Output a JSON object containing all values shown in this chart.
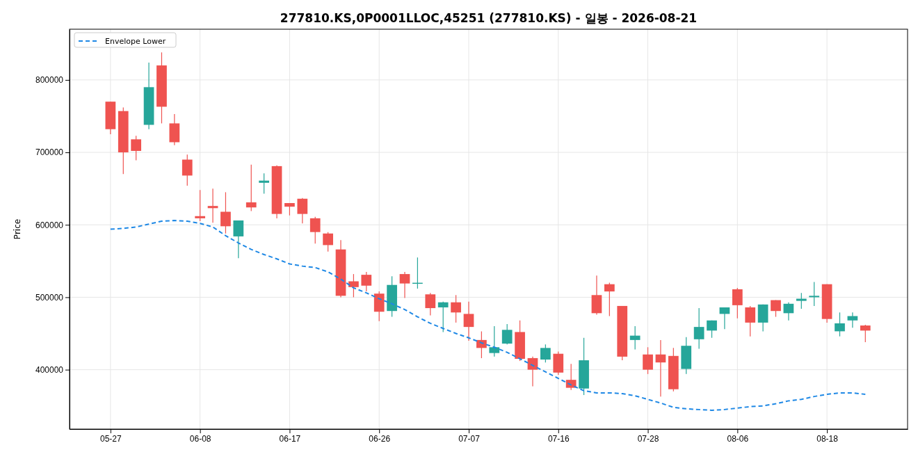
{
  "chart_data": {
    "type": "candlestick",
    "title": "277810.KS,0P0001LLOC,45251 (277810.KS) - 일봉 - 2026-08-21",
    "ylabel": "Price",
    "categories": [
      "05-27",
      null,
      null,
      null,
      null,
      null,
      null,
      "06-08",
      null,
      null,
      null,
      null,
      null,
      null,
      "06-17",
      null,
      null,
      null,
      null,
      null,
      null,
      "06-26",
      null,
      null,
      null,
      null,
      null,
      null,
      "07-07",
      null,
      null,
      null,
      null,
      null,
      null,
      "07-16",
      null,
      null,
      null,
      null,
      null,
      null,
      "07-28",
      null,
      null,
      null,
      null,
      null,
      null,
      "08-06",
      null,
      null,
      null,
      null,
      null,
      null,
      "08-18",
      null,
      null,
      null
    ],
    "ohlc": [
      [
        770000,
        770000,
        725000,
        732000
      ],
      [
        757000,
        762000,
        670000,
        700000
      ],
      [
        718000,
        723000,
        689000,
        702000
      ],
      [
        738000,
        824000,
        732000,
        790000
      ],
      [
        820000,
        838000,
        740000,
        763000
      ],
      [
        740000,
        753000,
        710000,
        714000
      ],
      [
        690000,
        697000,
        654000,
        668000
      ],
      [
        612000,
        648000,
        605000,
        609000
      ],
      [
        626000,
        650000,
        603000,
        623000
      ],
      [
        618000,
        645000,
        588000,
        598000
      ],
      [
        584000,
        606000,
        554000,
        606000
      ],
      [
        631000,
        683000,
        619000,
        624000
      ],
      [
        658000,
        671000,
        643000,
        661000
      ],
      [
        681000,
        682000,
        609000,
        615000
      ],
      [
        630000,
        630000,
        613000,
        625000
      ],
      [
        636000,
        637000,
        602000,
        615000
      ],
      [
        609000,
        611000,
        574000,
        590000
      ],
      [
        588000,
        590000,
        563000,
        572000
      ],
      [
        566000,
        579000,
        500000,
        502000
      ],
      [
        522000,
        532000,
        500000,
        514000
      ],
      [
        531000,
        535000,
        508000,
        516000
      ],
      [
        505000,
        508000,
        467000,
        480000
      ],
      [
        481000,
        529000,
        473000,
        517000
      ],
      [
        532000,
        535000,
        499000,
        519000
      ],
      [
        519000,
        555000,
        512000,
        520000
      ],
      [
        504000,
        506000,
        475000,
        485000
      ],
      [
        486000,
        494000,
        452000,
        493000
      ],
      [
        493000,
        503000,
        465000,
        479000
      ],
      [
        477000,
        494000,
        440000,
        459000
      ],
      [
        441000,
        453000,
        416000,
        430000
      ],
      [
        423000,
        460000,
        418000,
        431000
      ],
      [
        436000,
        463000,
        435000,
        455000
      ],
      [
        452000,
        468000,
        412000,
        415000
      ],
      [
        416000,
        418000,
        377000,
        400000
      ],
      [
        414000,
        435000,
        410000,
        430000
      ],
      [
        422000,
        425000,
        393000,
        396000
      ],
      [
        386000,
        408000,
        372000,
        375000
      ],
      [
        374000,
        444000,
        365000,
        413000
      ],
      [
        503000,
        530000,
        476000,
        478000
      ],
      [
        518000,
        520000,
        474000,
        508000
      ],
      [
        488000,
        488000,
        413000,
        418000
      ],
      [
        441000,
        460000,
        428000,
        447000
      ],
      [
        421000,
        431000,
        394000,
        400000
      ],
      [
        421000,
        441000,
        363000,
        410000
      ],
      [
        419000,
        430000,
        370000,
        373000
      ],
      [
        401000,
        445000,
        394000,
        433000
      ],
      [
        442000,
        485000,
        429000,
        459000
      ],
      [
        454000,
        468000,
        444000,
        468000
      ],
      [
        477000,
        486000,
        456000,
        486000
      ],
      [
        511000,
        513000,
        471000,
        489000
      ],
      [
        486000,
        488000,
        446000,
        465000
      ],
      [
        465000,
        490000,
        453000,
        490000
      ],
      [
        496000,
        496000,
        473000,
        481000
      ],
      [
        478000,
        493000,
        468000,
        491000
      ],
      [
        495000,
        506000,
        484000,
        498000
      ],
      [
        500000,
        521000,
        488000,
        502000
      ],
      [
        518000,
        518000,
        465000,
        470000
      ],
      [
        453000,
        479000,
        446000,
        464000
      ],
      [
        468000,
        479000,
        458000,
        474000
      ],
      [
        461000,
        462000,
        438000,
        454000
      ]
    ],
    "colors": [
      "#ef5350",
      "#ef5350",
      "#ef5350",
      "#26a69a",
      "#ef5350",
      "#ef5350",
      "#ef5350",
      "#ef5350",
      "#ef5350",
      "#ef5350",
      "#26a69a",
      "#ef5350",
      "#26a69a",
      "#ef5350",
      "#ef5350",
      "#ef5350",
      "#ef5350",
      "#ef5350",
      "#ef5350",
      "#ef5350",
      "#ef5350",
      "#ef5350",
      "#26a69a",
      "#ef5350",
      "#26a69a",
      "#ef5350",
      "#26a69a",
      "#ef5350",
      "#ef5350",
      "#ef5350",
      "#26a69a",
      "#26a69a",
      "#ef5350",
      "#ef5350",
      "#26a69a",
      "#ef5350",
      "#ef5350",
      "#26a69a",
      "#ef5350",
      "#ef5350",
      "#ef5350",
      "#26a69a",
      "#ef5350",
      "#ef5350",
      "#ef5350",
      "#26a69a",
      "#26a69a",
      "#26a69a",
      "#26a69a",
      "#ef5350",
      "#ef5350",
      "#26a69a",
      "#ef5350",
      "#26a69a",
      "#26a69a",
      "#26a69a",
      "#ef5350",
      "#26a69a",
      "#26a69a",
      "#ef5350"
    ],
    "series": [
      {
        "name": "Envelope Lower",
        "type": "line",
        "color": "#1e88e5",
        "line_style": "dashed",
        "values": [
          594000,
          595000,
          597000,
          601000,
          605000,
          606000,
          605000,
          602000,
          597000,
          585000,
          575000,
          566000,
          559000,
          553000,
          546000,
          543000,
          541000,
          535000,
          525000,
          513000,
          506000,
          498000,
          491000,
          483000,
          473000,
          464000,
          457000,
          450000,
          444000,
          437000,
          431000,
          424000,
          415000,
          406000,
          397000,
          388000,
          379000,
          371000,
          368000,
          368000,
          367000,
          364000,
          359000,
          354000,
          348000,
          346000,
          345000,
          344000,
          345000,
          347000,
          349000,
          350000,
          353000,
          357000,
          359000,
          363000,
          366000,
          368000,
          368000,
          366000
        ]
      }
    ],
    "ylim": [
      318000,
      870000
    ],
    "yticks": [
      400000,
      500000,
      600000,
      700000,
      800000
    ],
    "grid": true,
    "legend": "top left"
  }
}
